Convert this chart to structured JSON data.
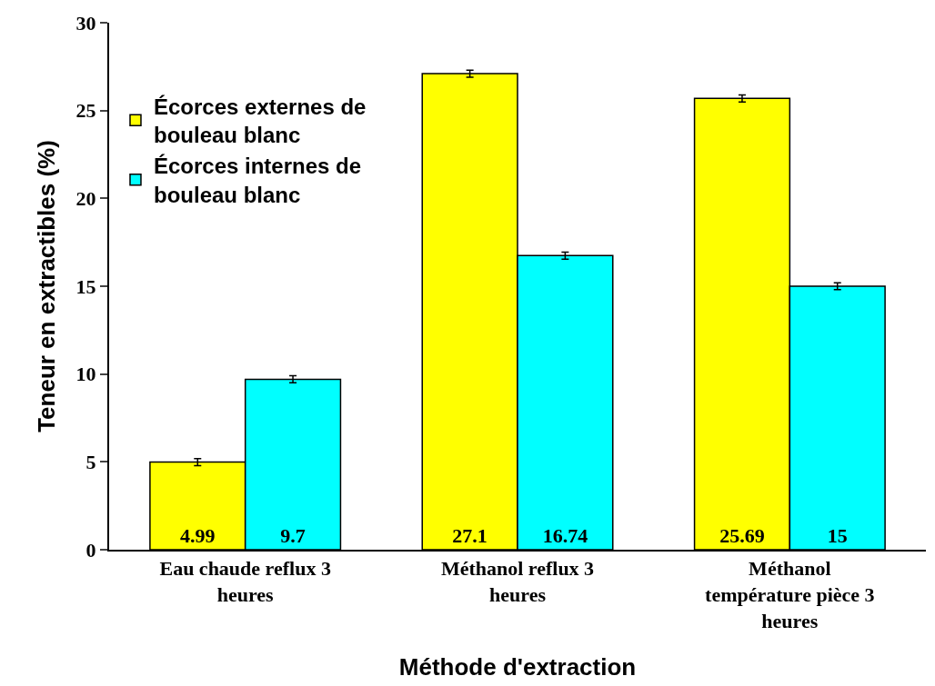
{
  "chart_data": {
    "type": "bar",
    "xlabel": "Méthode d'extraction",
    "ylabel": "Teneur en extractibles (%)",
    "categories": [
      "Eau chaude reflux 3 heures",
      "Méthanol reflux 3 heures",
      "Méthanol température pièce 3 heures"
    ],
    "series": [
      {
        "name": "Écorces externes de bouleau blanc",
        "color": "#ffff00",
        "values": [
          4.99,
          27.1,
          25.69
        ],
        "errors": [
          0.2,
          0.2,
          0.2
        ]
      },
      {
        "name": "Écorces internes de bouleau blanc",
        "color": "#00ffff",
        "values": [
          9.7,
          16.74,
          15
        ],
        "errors": [
          0.2,
          0.2,
          0.2
        ]
      }
    ],
    "ylim": [
      0,
      30
    ],
    "yticks": [
      0,
      5,
      10,
      15,
      20,
      25,
      30
    ],
    "data_labels": true,
    "legend": "top left"
  }
}
